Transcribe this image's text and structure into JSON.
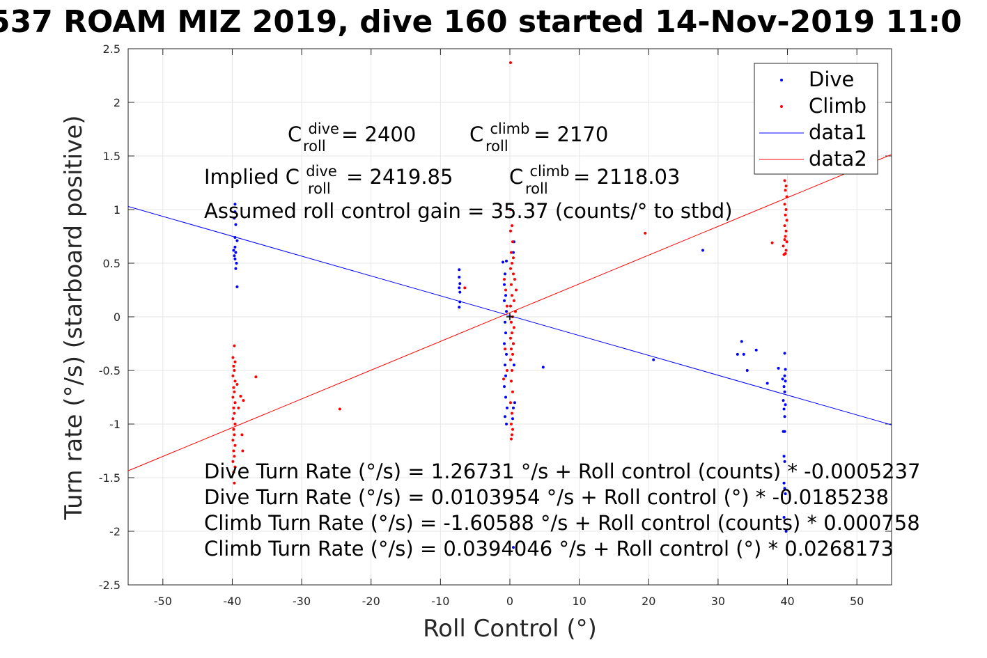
{
  "chart_data": {
    "type": "scatter",
    "title": "537 ROAM MIZ 2019, dive 160 started 14-Nov-2019 11:0",
    "xlabel": "Roll Control (°)",
    "ylabel": "Turn rate (°/s) (starboard positive)",
    "xlim": [
      -55,
      55
    ],
    "ylim": [
      -2.5,
      2.5
    ],
    "x_ticks": [
      -50,
      -40,
      -30,
      -20,
      -10,
      0,
      10,
      20,
      30,
      40,
      50
    ],
    "x_tick_labels": [
      "-50",
      "-40",
      "-30",
      "-20",
      "-10",
      "0",
      "10",
      "20",
      "30",
      "40",
      "50"
    ],
    "y_ticks": [
      -2.5,
      -2,
      -1.5,
      -1,
      -0.5,
      0,
      0.5,
      1,
      1.5,
      2,
      2.5
    ],
    "y_tick_labels": [
      "-2.5",
      "-2",
      "-1.5",
      "-1",
      "-0.5",
      "0",
      "0.5",
      "1",
      "1.5",
      "2",
      "2.5"
    ],
    "grid": true,
    "legend_position": "top-right",
    "legend": [
      "Dive",
      "Climb",
      "data1",
      "data2"
    ],
    "series": [
      {
        "name": "Dive",
        "kind": "points",
        "color": "#0000ff",
        "points": [
          [
            -39.6,
            1.05
          ],
          [
            -39.6,
            0.98
          ],
          [
            -39.7,
            0.92
          ],
          [
            -39.5,
            0.86
          ],
          [
            -39.6,
            0.74
          ],
          [
            -39.3,
            0.71
          ],
          [
            -39.6,
            0.65
          ],
          [
            -39.8,
            0.62
          ],
          [
            -39.5,
            0.6
          ],
          [
            -39.7,
            0.57
          ],
          [
            -39.6,
            0.54
          ],
          [
            -39.4,
            0.5
          ],
          [
            -39.5,
            0.45
          ],
          [
            -39.3,
            0.28
          ],
          [
            -7.3,
            0.44
          ],
          [
            -7.3,
            0.37
          ],
          [
            -7.2,
            0.31
          ],
          [
            -7.3,
            0.27
          ],
          [
            -7.2,
            0.23
          ],
          [
            -7.2,
            0.14
          ],
          [
            -7.3,
            0.09
          ],
          [
            -1.0,
            0.51
          ],
          [
            -0.5,
            0.52
          ],
          [
            -0.7,
            0.4
          ],
          [
            -0.8,
            0.3
          ],
          [
            -0.6,
            0.2
          ],
          [
            -0.8,
            0.15
          ],
          [
            -0.5,
            0.05
          ],
          [
            -0.7,
            -0.05
          ],
          [
            -0.6,
            -0.15
          ],
          [
            -0.8,
            -0.25
          ],
          [
            -0.5,
            -0.35
          ],
          [
            -0.7,
            -0.45
          ],
          [
            -0.6,
            -0.55
          ],
          [
            -0.8,
            -0.65
          ],
          [
            -0.6,
            -0.75
          ],
          [
            -0.4,
            -0.85
          ],
          [
            -0.7,
            -0.93
          ],
          [
            -0.5,
            -1.0
          ],
          [
            0.6,
            0.7
          ],
          [
            0.5,
            0.6
          ],
          [
            0.5,
            -0.25
          ],
          [
            0.6,
            -0.45
          ],
          [
            0.7,
            -0.8
          ],
          [
            0.5,
            -0.85
          ],
          [
            0.4,
            -0.95
          ],
          [
            4.8,
            -0.47
          ],
          [
            20.7,
            -0.4
          ],
          [
            27.8,
            0.62
          ],
          [
            32.8,
            -0.35
          ],
          [
            33.4,
            -0.23
          ],
          [
            33.7,
            -0.35
          ],
          [
            34.2,
            -0.5
          ],
          [
            35.5,
            -0.31
          ],
          [
            37.1,
            -0.62
          ],
          [
            38.7,
            -0.48
          ],
          [
            39.3,
            -0.58
          ],
          [
            39.5,
            -0.65
          ],
          [
            39.6,
            -0.7
          ],
          [
            39.7,
            -0.6
          ],
          [
            39.6,
            -0.55
          ],
          [
            39.7,
            -0.49
          ],
          [
            39.6,
            -0.34
          ],
          [
            39.4,
            -0.78
          ],
          [
            39.7,
            -0.82
          ],
          [
            39.5,
            -0.86
          ],
          [
            39.6,
            -0.93
          ],
          [
            39.4,
            -1.07
          ],
          [
            39.6,
            -1.07
          ],
          [
            39.5,
            -1.3
          ],
          [
            39.6,
            -1.35
          ],
          [
            39.5,
            -1.55
          ],
          [
            39.6,
            -1.6
          ],
          [
            39.7,
            -1.65
          ],
          [
            39.5,
            -1.87
          ],
          [
            39.8,
            -2.0
          ],
          [
            0.5,
            -2.15
          ]
        ]
      },
      {
        "name": "Climb",
        "kind": "points",
        "color": "#ff0000",
        "points": [
          [
            -39.7,
            -0.27
          ],
          [
            -39.9,
            -0.38
          ],
          [
            -39.6,
            -0.42
          ],
          [
            -39.8,
            -0.46
          ],
          [
            -39.7,
            -0.5
          ],
          [
            -39.9,
            -0.55
          ],
          [
            -39.6,
            -0.6
          ],
          [
            -39.8,
            -0.66
          ],
          [
            -39.7,
            -0.7
          ],
          [
            -39.9,
            -0.75
          ],
          [
            -39.6,
            -0.8
          ],
          [
            -39.8,
            -0.85
          ],
          [
            -39.7,
            -0.9
          ],
          [
            -39.9,
            -0.95
          ],
          [
            -39.6,
            -1.0
          ],
          [
            -39.8,
            -1.05
          ],
          [
            -39.7,
            -1.1
          ],
          [
            -39.9,
            -1.15
          ],
          [
            -39.6,
            -1.2
          ],
          [
            -39.8,
            -1.25
          ],
          [
            -39.7,
            -1.3
          ],
          [
            -39.9,
            -1.35
          ],
          [
            -39.6,
            -1.4
          ],
          [
            -39.8,
            -1.45
          ],
          [
            -39.7,
            -1.55
          ],
          [
            -39.3,
            -0.63
          ],
          [
            -39.1,
            -0.85
          ],
          [
            -38.8,
            -0.74
          ],
          [
            -38.6,
            -1.1
          ],
          [
            -38.5,
            -1.25
          ],
          [
            -38.4,
            -0.78
          ],
          [
            -36.6,
            -0.56
          ],
          [
            -24.5,
            -0.86
          ],
          [
            -6.5,
            0.27
          ],
          [
            -0.8,
            0.35
          ],
          [
            -0.6,
            0.25
          ],
          [
            -0.4,
            0.1
          ],
          [
            -0.7,
            -0.3
          ],
          [
            -0.4,
            -0.5
          ],
          [
            -0.9,
            -0.58
          ],
          [
            0.1,
            1.0
          ],
          [
            0.3,
            0.85
          ],
          [
            0.1,
            0.8
          ],
          [
            0.4,
            0.7
          ],
          [
            0.2,
            0.6
          ],
          [
            0.5,
            0.55
          ],
          [
            0.3,
            0.5
          ],
          [
            0.1,
            0.45
          ],
          [
            0.5,
            0.4
          ],
          [
            0.7,
            0.35
          ],
          [
            0.2,
            0.3
          ],
          [
            0.9,
            0.25
          ],
          [
            0.3,
            0.2
          ],
          [
            0.6,
            0.15
          ],
          [
            0.1,
            0.1
          ],
          [
            0.8,
            0.05
          ],
          [
            0.4,
            0.0
          ],
          [
            0.2,
            -0.05
          ],
          [
            0.6,
            -0.1
          ],
          [
            0.3,
            -0.15
          ],
          [
            0.1,
            -0.2
          ],
          [
            0.5,
            -0.25
          ],
          [
            0.2,
            -0.3
          ],
          [
            0.4,
            -0.35
          ],
          [
            0.1,
            -0.4
          ],
          [
            0.3,
            -0.5
          ],
          [
            0.2,
            -0.6
          ],
          [
            0.4,
            -0.7
          ],
          [
            0.1,
            -0.8
          ],
          [
            0.3,
            -0.9
          ],
          [
            0.2,
            -1.0
          ],
          [
            0.4,
            -1.05
          ],
          [
            0.3,
            -1.1
          ],
          [
            0.2,
            -1.14
          ],
          [
            0.1,
            2.37
          ],
          [
            19.5,
            0.78
          ],
          [
            37.8,
            0.69
          ],
          [
            39.6,
            1.27
          ],
          [
            39.8,
            1.22
          ],
          [
            39.7,
            1.18
          ],
          [
            39.9,
            1.12
          ],
          [
            39.6,
            1.05
          ],
          [
            39.8,
            1.0
          ],
          [
            39.7,
            0.95
          ],
          [
            39.9,
            0.9
          ],
          [
            39.6,
            0.85
          ],
          [
            39.8,
            0.8
          ],
          [
            39.7,
            0.75
          ],
          [
            39.9,
            0.7
          ],
          [
            39.4,
            0.66
          ],
          [
            39.7,
            0.59
          ],
          [
            39.5,
            0.58
          ],
          [
            39.6,
            0.72
          ],
          [
            39.8,
            0.62
          ]
        ]
      },
      {
        "name": "data1",
        "kind": "line",
        "color": "#0000ff",
        "points": [
          [
            -55,
            1.029
          ],
          [
            55,
            -1.008
          ]
        ]
      },
      {
        "name": "data2",
        "kind": "line",
        "color": "#ff0000",
        "points": [
          [
            -55,
            -1.436
          ],
          [
            55,
            1.514
          ]
        ]
      }
    ],
    "origin_marker": [
      0,
      0
    ],
    "annotations": {
      "c_roll_dive": {
        "base": "C",
        "sup": "dive",
        "sub": "roll",
        "rest": " = 2400"
      },
      "c_roll_climb": {
        "base": "C",
        "sup": "climb",
        "sub": "roll",
        "rest": " = 2170"
      },
      "implied_dive": {
        "prefix": "Implied C",
        "sup": "dive",
        "sub": "roll",
        "rest": " = 2419.85"
      },
      "implied_climb": {
        "base": "C",
        "sup": "climb",
        "sub": "roll",
        "rest": " = 2118.03"
      },
      "gain": "Assumed roll control gain = 35.37 (counts/° to stbd)",
      "fit_lines": [
        "Dive Turn Rate (°/s) = 1.26731 °/s + Roll control (counts) * -0.0005237",
        "Dive Turn Rate (°/s) = 0.0103954 °/s + Roll control (°) * -0.0185238",
        "Climb Turn Rate (°/s) = -1.60588 °/s + Roll control (counts) * 0.000758",
        "Climb Turn Rate (°/s) = 0.0394046 °/s + Roll control (°) * 0.0268173"
      ]
    }
  }
}
